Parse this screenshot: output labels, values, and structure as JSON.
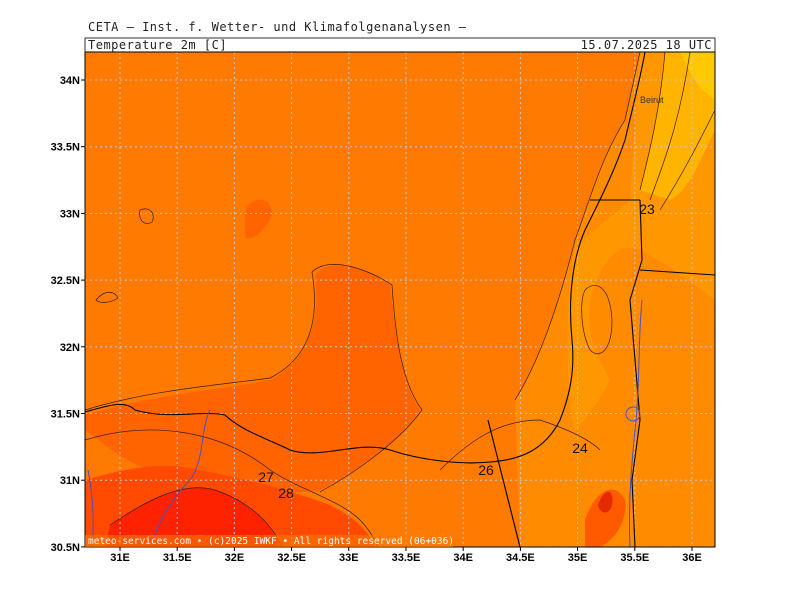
{
  "header": {
    "title": "CETA — Inst. f. Wetter- und Klimafolgenanalysen —",
    "variable": "Temperature_2m_[C]",
    "valid_time": "15.07.2025 18 UTC"
  },
  "map": {
    "latitude_labels": [
      "34N",
      "33.5N",
      "33N",
      "32.5N",
      "32N",
      "31.5N",
      "31N",
      "30.5N"
    ],
    "longitude_labels": [
      "31E",
      "31.5E",
      "32E",
      "32.5E",
      "33E",
      "33.5E",
      "34E",
      "34.5E",
      "35E",
      "35.5E",
      "36E"
    ],
    "place_labels": [
      "Beirut"
    ],
    "contour_labels": [
      "23",
      "24",
      "26",
      "27",
      "28"
    ]
  },
  "footer": {
    "copyright": "meteo-services.com • (c)2025 IWKF • All rights reserved (06+036)"
  }
}
